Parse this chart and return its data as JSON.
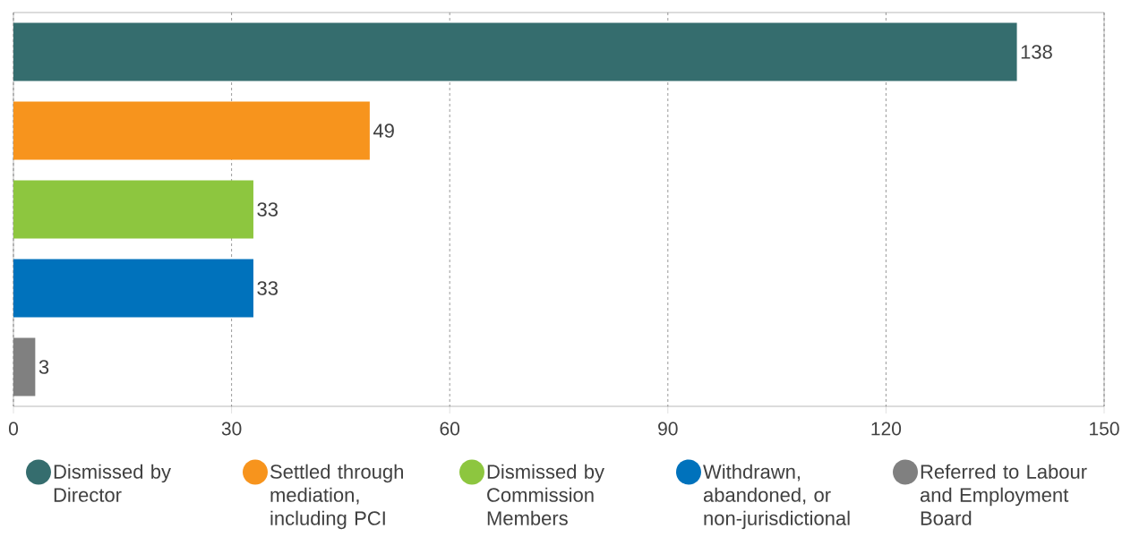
{
  "chart_data": {
    "type": "bar",
    "orientation": "horizontal",
    "categories": [
      null,
      null,
      null,
      null,
      null
    ],
    "series": [
      {
        "name": "Dismissed by Director",
        "color": "#356d6e",
        "values": [
          138,
          null,
          null,
          null,
          null
        ]
      },
      {
        "name": "Settled through mediation, including PCI",
        "color": "#f7941d",
        "values": [
          null,
          49,
          null,
          null,
          null
        ]
      },
      {
        "name": "Dismissed by Commission Members",
        "color": "#8dc63f",
        "values": [
          null,
          null,
          33,
          null,
          null
        ]
      },
      {
        "name": "Withdrawn, abandoned, or non-jurisdictional",
        "color": "#0072bc",
        "values": [
          null,
          null,
          null,
          33,
          null
        ]
      },
      {
        "name": "Referred to Labour and Employment Board",
        "color": "#808080",
        "values": [
          null,
          null,
          null,
          null,
          3
        ]
      }
    ],
    "xlim": [
      0,
      150
    ],
    "xticks": [
      0,
      30,
      60,
      90,
      120,
      150
    ],
    "grid": "x",
    "legend": "bottom",
    "data_labels": true,
    "tick_labels": "x"
  }
}
